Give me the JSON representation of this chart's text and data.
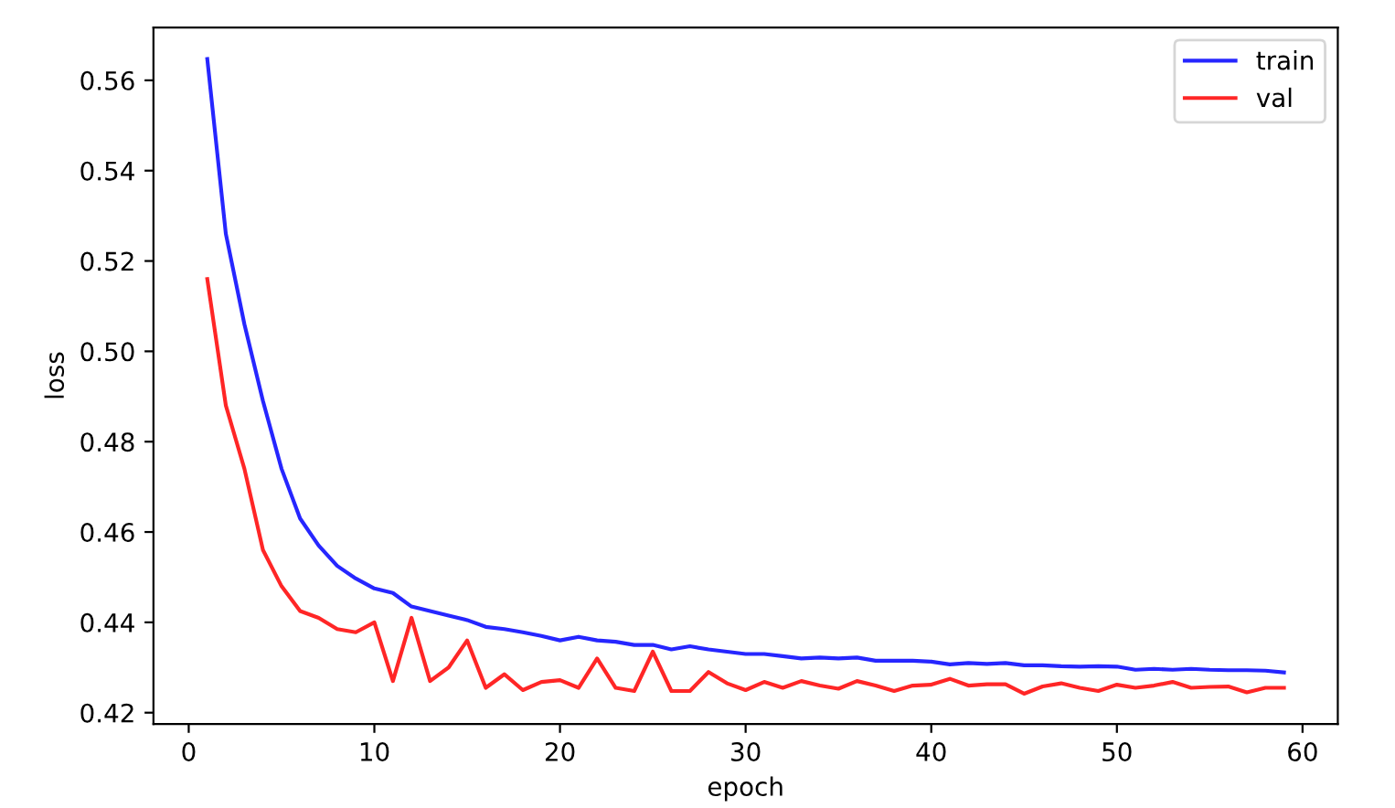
{
  "chart_data": {
    "type": "line",
    "xlabel": "epoch",
    "ylabel": "loss",
    "x": [
      1,
      2,
      3,
      4,
      5,
      6,
      7,
      8,
      9,
      10,
      11,
      12,
      13,
      14,
      15,
      16,
      17,
      18,
      19,
      20,
      21,
      22,
      23,
      24,
      25,
      26,
      27,
      28,
      29,
      30,
      31,
      32,
      33,
      34,
      35,
      36,
      37,
      38,
      39,
      40,
      41,
      42,
      43,
      44,
      45,
      46,
      47,
      48,
      49,
      50,
      51,
      52,
      53,
      54,
      55,
      56,
      57,
      58,
      59
    ],
    "series": [
      {
        "name": "train",
        "color": "#0000ff",
        "values": [
          0.5647,
          0.526,
          0.506,
          0.489,
          0.474,
          0.463,
          0.457,
          0.4525,
          0.4497,
          0.4475,
          0.4465,
          0.4435,
          0.4425,
          0.4415,
          0.4405,
          0.439,
          0.4385,
          0.4378,
          0.437,
          0.436,
          0.4368,
          0.436,
          0.4357,
          0.435,
          0.435,
          0.434,
          0.4347,
          0.434,
          0.4335,
          0.433,
          0.433,
          0.4325,
          0.432,
          0.4322,
          0.432,
          0.4322,
          0.4315,
          0.4315,
          0.4315,
          0.4313,
          0.4307,
          0.431,
          0.4308,
          0.431,
          0.4305,
          0.4305,
          0.4303,
          0.4302,
          0.4303,
          0.4302,
          0.4295,
          0.4297,
          0.4295,
          0.4297,
          0.4295,
          0.4294,
          0.4294,
          0.4293,
          0.4289
        ]
      },
      {
        "name": "val",
        "color": "#ff0000",
        "values": [
          0.516,
          0.488,
          0.474,
          0.456,
          0.448,
          0.4425,
          0.441,
          0.4385,
          0.4378,
          0.44,
          0.427,
          0.441,
          0.427,
          0.43,
          0.436,
          0.4255,
          0.4285,
          0.425,
          0.4268,
          0.4272,
          0.4255,
          0.432,
          0.4255,
          0.4248,
          0.4335,
          0.4248,
          0.4248,
          0.429,
          0.4265,
          0.425,
          0.4268,
          0.4255,
          0.427,
          0.426,
          0.4253,
          0.427,
          0.426,
          0.4248,
          0.426,
          0.4262,
          0.4275,
          0.426,
          0.4263,
          0.4263,
          0.4242,
          0.4258,
          0.4265,
          0.4255,
          0.4248,
          0.4262,
          0.4255,
          0.426,
          0.4268,
          0.4255,
          0.4257,
          0.4258,
          0.4245,
          0.4255,
          0.4255
        ]
      }
    ],
    "xlim": [
      -1.9,
      61.9
    ],
    "xticks": [
      0,
      10,
      20,
      30,
      40,
      50,
      60
    ],
    "ylim": [
      0.4175,
      0.5717
    ],
    "yticks": [
      0.42,
      0.44,
      0.46,
      0.48,
      {
        "value": 0.5,
        "label": "0.50"
      },
      0.52,
      0.54,
      0.56
    ],
    "legend": "top right",
    "grid": false,
    "marker": "none",
    "line_style": "solid"
  }
}
